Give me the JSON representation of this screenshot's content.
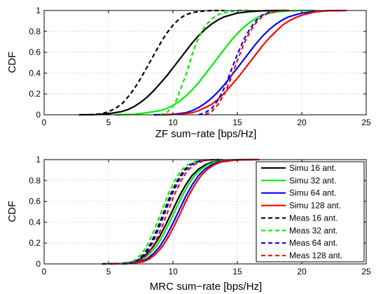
{
  "chart_data": [
    {
      "type": "line",
      "title": "",
      "xlabel": "ZF sum−rate [bps/Hz]",
      "ylabel": "CDF",
      "xlim": [
        0,
        25
      ],
      "ylim": [
        0,
        1
      ],
      "xticks": [
        "0",
        "5",
        "10",
        "15",
        "20",
        "25"
      ],
      "yticks": [
        "0",
        "0.2",
        "0.4",
        "0.6",
        "0.8",
        "1"
      ],
      "grid": true,
      "series": [
        {
          "name": "Simu 16 ant.",
          "color": "#000000",
          "dash": "solid",
          "x": [
            2.7,
            4,
            5,
            6,
            6.5,
            7,
            7.5,
            8,
            8.5,
            9,
            9.5,
            10,
            10.5,
            11,
            11.5,
            12,
            12.5,
            13,
            13.5,
            14,
            15,
            16,
            17,
            18,
            19
          ],
          "y": [
            0,
            0.002,
            0.01,
            0.03,
            0.05,
            0.08,
            0.12,
            0.17,
            0.23,
            0.3,
            0.37,
            0.45,
            0.53,
            0.61,
            0.69,
            0.76,
            0.82,
            0.87,
            0.91,
            0.94,
            0.975,
            0.99,
            0.997,
            1,
            1
          ]
        },
        {
          "name": "Simu 32 ant.",
          "color": "#00ee00",
          "dash": "solid",
          "x": [
            5.5,
            7,
            8,
            9,
            9.5,
            10,
            10.5,
            11,
            11.5,
            12,
            12.5,
            13,
            13.5,
            14,
            14.5,
            15,
            15.5,
            16,
            16.5,
            17,
            18,
            19,
            20,
            21
          ],
          "y": [
            0,
            0.005,
            0.02,
            0.04,
            0.06,
            0.09,
            0.13,
            0.18,
            0.24,
            0.31,
            0.39,
            0.47,
            0.55,
            0.63,
            0.71,
            0.78,
            0.84,
            0.89,
            0.93,
            0.96,
            0.985,
            0.995,
            1,
            1
          ]
        },
        {
          "name": "Simu 64 ant.",
          "color": "#0000ff",
          "dash": "solid",
          "x": [
            8.5,
            10,
            11,
            11.5,
            12,
            12.5,
            13,
            13.5,
            14,
            14.5,
            15,
            15.5,
            16,
            16.5,
            17,
            17.5,
            18,
            18.5,
            19,
            20,
            21,
            22,
            23
          ],
          "y": [
            0,
            0.005,
            0.02,
            0.04,
            0.07,
            0.11,
            0.16,
            0.22,
            0.29,
            0.37,
            0.45,
            0.53,
            0.61,
            0.69,
            0.76,
            0.82,
            0.87,
            0.91,
            0.94,
            0.975,
            0.99,
            0.998,
            1
          ]
        },
        {
          "name": "Simu 128 ant.",
          "color": "#ff0000",
          "dash": "solid",
          "x": [
            9,
            10.5,
            11.5,
            12,
            12.5,
            13,
            13.5,
            14,
            14.5,
            15,
            15.5,
            16,
            16.5,
            17,
            17.5,
            18,
            18.5,
            19,
            19.5,
            20,
            21,
            22,
            23.5
          ],
          "y": [
            0,
            0.005,
            0.02,
            0.04,
            0.07,
            0.1,
            0.15,
            0.21,
            0.28,
            0.35,
            0.43,
            0.51,
            0.59,
            0.67,
            0.74,
            0.8,
            0.86,
            0.9,
            0.93,
            0.955,
            0.985,
            0.997,
            1
          ]
        },
        {
          "name": "Meas 16 ant.",
          "color": "#000000",
          "dash": "dashed",
          "x": [
            3.5,
            4.5,
            5,
            5.5,
            6,
            6.5,
            7,
            7.5,
            8,
            8.5,
            9,
            9.5,
            10,
            10.5,
            11,
            11.5,
            12,
            13,
            14
          ],
          "y": [
            0,
            0.01,
            0.03,
            0.06,
            0.1,
            0.17,
            0.25,
            0.35,
            0.46,
            0.57,
            0.68,
            0.78,
            0.86,
            0.92,
            0.96,
            0.98,
            0.99,
            1,
            1
          ]
        },
        {
          "name": "Meas 32 ant.",
          "color": "#00ee00",
          "dash": "dashed",
          "x": [
            9,
            9.5,
            10,
            10.3,
            10.6,
            11,
            11.3,
            11.6,
            12,
            12.5,
            13,
            13.5,
            14,
            14.5,
            15,
            16
          ],
          "y": [
            0,
            0.02,
            0.08,
            0.15,
            0.25,
            0.38,
            0.5,
            0.62,
            0.74,
            0.85,
            0.92,
            0.96,
            0.98,
            0.99,
            1,
            1
          ]
        },
        {
          "name": "Meas 64 ant.",
          "color": "#0000ff",
          "dash": "dashed",
          "x": [
            12,
            12.5,
            13,
            13.5,
            14,
            14.5,
            15,
            15.5,
            16,
            16.5,
            17,
            17.5,
            18,
            18.5,
            19
          ],
          "y": [
            0,
            0.02,
            0.06,
            0.14,
            0.26,
            0.42,
            0.58,
            0.72,
            0.83,
            0.91,
            0.96,
            0.985,
            0.995,
            1,
            1
          ]
        },
        {
          "name": "Meas 128 ant.",
          "color": "#ff0000",
          "dash": "dashed",
          "x": [
            12.5,
            13,
            13.5,
            14,
            14.5,
            15,
            15.5,
            16,
            16.5,
            17,
            17.5,
            18,
            18.5,
            19
          ],
          "y": [
            0,
            0.03,
            0.1,
            0.2,
            0.35,
            0.52,
            0.68,
            0.8,
            0.89,
            0.95,
            0.98,
            0.993,
            1,
            1
          ]
        }
      ]
    },
    {
      "type": "line",
      "title": "",
      "xlabel": "MRC sum−rate [bps/Hz]",
      "ylabel": "CDF",
      "xlim": [
        0,
        25
      ],
      "ylim": [
        0,
        1
      ],
      "xticks": [
        "0",
        "5",
        "10",
        "15",
        "20",
        "25"
      ],
      "yticks": [
        "0",
        "0.2",
        "0.4",
        "0.6",
        "0.8",
        "1"
      ],
      "grid": true,
      "legend": "top-right",
      "series": [
        {
          "name": "Simu 16 ant.",
          "color": "#000000",
          "dash": "solid",
          "x": [
            4.5,
            6,
            7,
            7.5,
            8,
            8.5,
            9,
            9.5,
            10,
            10.5,
            11,
            11.5,
            12,
            12.5,
            13,
            14,
            15,
            16
          ],
          "y": [
            0,
            0.005,
            0.02,
            0.05,
            0.1,
            0.17,
            0.27,
            0.39,
            0.52,
            0.65,
            0.76,
            0.85,
            0.91,
            0.95,
            0.975,
            0.993,
            0.999,
            1
          ]
        },
        {
          "name": "Simu 32 ant.",
          "color": "#00ee00",
          "dash": "solid",
          "x": [
            4.8,
            6.2,
            7.2,
            7.7,
            8.2,
            8.7,
            9.2,
            9.7,
            10.2,
            10.7,
            11.2,
            11.7,
            12.2,
            12.7,
            13.2,
            14.2,
            15.2,
            16.2
          ],
          "y": [
            0,
            0.005,
            0.02,
            0.05,
            0.1,
            0.17,
            0.27,
            0.39,
            0.52,
            0.65,
            0.76,
            0.85,
            0.91,
            0.95,
            0.975,
            0.993,
            0.999,
            1
          ]
        },
        {
          "name": "Simu 64 ant.",
          "color": "#0000ff",
          "dash": "solid",
          "x": [
            5.1,
            6.5,
            7.5,
            8,
            8.5,
            9,
            9.5,
            10,
            10.5,
            11,
            11.5,
            12,
            12.5,
            13,
            13.5,
            14.5,
            15.5,
            16.5
          ],
          "y": [
            0,
            0.005,
            0.02,
            0.05,
            0.1,
            0.17,
            0.27,
            0.39,
            0.52,
            0.65,
            0.76,
            0.85,
            0.91,
            0.95,
            0.975,
            0.993,
            0.999,
            1
          ]
        },
        {
          "name": "Simu 128 ant.",
          "color": "#ff0000",
          "dash": "solid",
          "x": [
            5.3,
            6.7,
            7.7,
            8.2,
            8.7,
            9.2,
            9.7,
            10.2,
            10.7,
            11.2,
            11.7,
            12.2,
            12.7,
            13.2,
            13.7,
            14.7,
            15.7,
            16.7
          ],
          "y": [
            0,
            0.005,
            0.02,
            0.05,
            0.1,
            0.17,
            0.27,
            0.39,
            0.52,
            0.65,
            0.76,
            0.85,
            0.91,
            0.95,
            0.975,
            0.993,
            0.999,
            1
          ]
        },
        {
          "name": "Meas 16 ant.",
          "color": "#000000",
          "dash": "dashed",
          "x": [
            6,
            6.8,
            7.3,
            7.8,
            8.3,
            8.8,
            9.3,
            9.8,
            10.3,
            10.8,
            11.3,
            12,
            12.5,
            13.5
          ],
          "y": [
            0,
            0.01,
            0.04,
            0.1,
            0.2,
            0.34,
            0.5,
            0.66,
            0.79,
            0.89,
            0.95,
            0.985,
            0.995,
            1
          ]
        },
        {
          "name": "Meas 32 ant.",
          "color": "#00ee00",
          "dash": "dashed",
          "x": [
            5.8,
            6.6,
            7.1,
            7.6,
            8.1,
            8.6,
            9.1,
            9.6,
            10.1,
            10.6,
            11.1,
            11.8,
            12.3,
            13.3
          ],
          "y": [
            0,
            0.01,
            0.04,
            0.1,
            0.2,
            0.34,
            0.5,
            0.66,
            0.79,
            0.89,
            0.95,
            0.985,
            0.995,
            1
          ]
        },
        {
          "name": "Meas 64 ant.",
          "color": "#0000ff",
          "dash": "dashed",
          "x": [
            6.1,
            6.9,
            7.4,
            7.9,
            8.4,
            8.9,
            9.4,
            9.9,
            10.4,
            10.9,
            11.4,
            12.1,
            12.6,
            13.6
          ],
          "y": [
            0,
            0.01,
            0.04,
            0.1,
            0.2,
            0.34,
            0.5,
            0.66,
            0.79,
            0.89,
            0.95,
            0.985,
            0.995,
            1
          ]
        },
        {
          "name": "Meas 128 ant.",
          "color": "#ff0000",
          "dash": "dashed",
          "x": [
            6.3,
            7.1,
            7.6,
            8.1,
            8.6,
            9.1,
            9.6,
            10.1,
            10.6,
            11.1,
            11.6,
            12.3,
            12.8,
            13.8
          ],
          "y": [
            0,
            0.01,
            0.04,
            0.1,
            0.2,
            0.34,
            0.5,
            0.66,
            0.79,
            0.89,
            0.95,
            0.985,
            0.995,
            1
          ]
        }
      ]
    }
  ]
}
